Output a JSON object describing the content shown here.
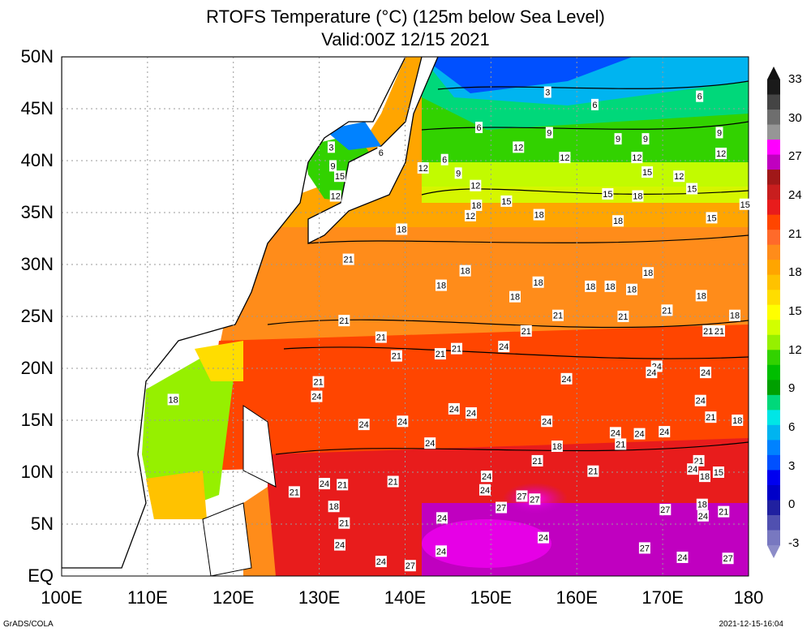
{
  "title": {
    "line1": "RTOFS Temperature (°C) (125m below Sea Level)",
    "line2": "Valid:00Z 12/15 2021"
  },
  "axes": {
    "lat_labels": [
      "50N",
      "45N",
      "40N",
      "35N",
      "30N",
      "25N",
      "20N",
      "15N",
      "10N",
      "5N",
      "EQ"
    ],
    "lon_labels": [
      "100E",
      "110E",
      "120E",
      "130E",
      "140E",
      "150E",
      "160E",
      "170E",
      "180"
    ],
    "lat_range": [
      0,
      50
    ],
    "lon_range": [
      100,
      180
    ],
    "grid": true
  },
  "colorbar": {
    "labels": [
      "33",
      "30",
      "27",
      "24",
      "21",
      "18",
      "15",
      "12",
      "9",
      "6",
      "3",
      "0",
      "-3"
    ],
    "colors": [
      "#1a1a1a",
      "#444444",
      "#6e6e6e",
      "#969696",
      "#ff00ff",
      "#c000c0",
      "#a01818",
      "#c81e1e",
      "#e81c1c",
      "#ff4500",
      "#ff6a2a",
      "#ff8c1a",
      "#ffa500",
      "#ffc200",
      "#ffdd00",
      "#ffff00",
      "#d2ff00",
      "#96f000",
      "#32d200",
      "#00be00",
      "#00a000",
      "#00d87a",
      "#00e6e6",
      "#00b4f0",
      "#0082ff",
      "#0050ff",
      "#0000f0",
      "#0000c8",
      "#2020a0",
      "#5050b0",
      "#7878c0"
    ]
  },
  "contour_labels": [
    {
      "v": "3",
      "lon": 156.6,
      "lat": 46.6
    },
    {
      "v": "6",
      "lon": 162.1,
      "lat": 45.4
    },
    {
      "v": "6",
      "lon": 174.3,
      "lat": 46.2
    },
    {
      "v": "6",
      "lon": 148.6,
      "lat": 43.2
    },
    {
      "v": "9",
      "lon": 156.8,
      "lat": 42.7
    },
    {
      "v": "9",
      "lon": 164.8,
      "lat": 42.1
    },
    {
      "v": "9",
      "lon": 168.0,
      "lat": 42.1
    },
    {
      "v": "9",
      "lon": 176.6,
      "lat": 42.7
    },
    {
      "v": "12",
      "lon": 153.2,
      "lat": 41.3
    },
    {
      "v": "12",
      "lon": 158.6,
      "lat": 40.3
    },
    {
      "v": "12",
      "lon": 167.0,
      "lat": 40.3
    },
    {
      "v": "12",
      "lon": 176.8,
      "lat": 40.7
    },
    {
      "v": "3",
      "lon": 131.4,
      "lat": 41.3
    },
    {
      "v": "6",
      "lon": 137.2,
      "lat": 40.8
    },
    {
      "v": "9",
      "lon": 131.6,
      "lat": 39.5
    },
    {
      "v": "15",
      "lon": 132.4,
      "lat": 38.5
    },
    {
      "v": "12",
      "lon": 131.9,
      "lat": 36.6
    },
    {
      "v": "12",
      "lon": 142.1,
      "lat": 39.3
    },
    {
      "v": "6",
      "lon": 144.6,
      "lat": 40.1
    },
    {
      "v": "9",
      "lon": 146.2,
      "lat": 38.8
    },
    {
      "v": "12",
      "lon": 148.2,
      "lat": 37.6
    },
    {
      "v": "15",
      "lon": 168.2,
      "lat": 38.9
    },
    {
      "v": "12",
      "lon": 171.9,
      "lat": 38.5
    },
    {
      "v": "15",
      "lon": 173.4,
      "lat": 37.3
    },
    {
      "v": "15",
      "lon": 163.6,
      "lat": 36.8
    },
    {
      "v": "18",
      "lon": 167.1,
      "lat": 36.6
    },
    {
      "v": "15",
      "lon": 151.8,
      "lat": 36.1
    },
    {
      "v": "18",
      "lon": 148.3,
      "lat": 35.7
    },
    {
      "v": "12",
      "lon": 147.6,
      "lat": 34.7
    },
    {
      "v": "18",
      "lon": 155.6,
      "lat": 34.8
    },
    {
      "v": "18",
      "lon": 164.8,
      "lat": 34.2
    },
    {
      "v": "15",
      "lon": 175.7,
      "lat": 34.5
    },
    {
      "v": "15",
      "lon": 179.6,
      "lat": 35.8
    },
    {
      "v": "18",
      "lon": 139.6,
      "lat": 33.4
    },
    {
      "v": "21",
      "lon": 133.4,
      "lat": 30.5
    },
    {
      "v": "18",
      "lon": 147.0,
      "lat": 29.4
    },
    {
      "v": "18",
      "lon": 144.2,
      "lat": 28.0
    },
    {
      "v": "18",
      "lon": 155.5,
      "lat": 28.3
    },
    {
      "v": "18",
      "lon": 168.3,
      "lat": 29.2
    },
    {
      "v": "18",
      "lon": 161.6,
      "lat": 27.9
    },
    {
      "v": "18",
      "lon": 163.9,
      "lat": 27.9
    },
    {
      "v": "18",
      "lon": 166.4,
      "lat": 27.6
    },
    {
      "v": "18",
      "lon": 152.8,
      "lat": 26.9
    },
    {
      "v": "18",
      "lon": 174.5,
      "lat": 27.0
    },
    {
      "v": "21",
      "lon": 157.8,
      "lat": 25.1
    },
    {
      "v": "21",
      "lon": 165.4,
      "lat": 25.0
    },
    {
      "v": "21",
      "lon": 170.5,
      "lat": 25.6
    },
    {
      "v": "18",
      "lon": 178.4,
      "lat": 25.1
    },
    {
      "v": "21",
      "lon": 132.9,
      "lat": 24.6
    },
    {
      "v": "21",
      "lon": 154.1,
      "lat": 23.6
    },
    {
      "v": "21",
      "lon": 175.3,
      "lat": 23.6
    },
    {
      "v": "21",
      "lon": 176.6,
      "lat": 23.6
    },
    {
      "v": "21",
      "lon": 137.2,
      "lat": 23.0
    },
    {
      "v": "24",
      "lon": 151.5,
      "lat": 22.1
    },
    {
      "v": "21",
      "lon": 146.0,
      "lat": 21.9
    },
    {
      "v": "21",
      "lon": 144.1,
      "lat": 21.4
    },
    {
      "v": "21",
      "lon": 139.0,
      "lat": 21.2
    },
    {
      "v": "24",
      "lon": 169.3,
      "lat": 20.2
    },
    {
      "v": "24",
      "lon": 168.7,
      "lat": 19.6
    },
    {
      "v": "24",
      "lon": 175.0,
      "lat": 19.6
    },
    {
      "v": "24",
      "lon": 158.8,
      "lat": 19.0
    },
    {
      "v": "21",
      "lon": 129.9,
      "lat": 18.7
    },
    {
      "v": "24",
      "lon": 129.7,
      "lat": 17.3
    },
    {
      "v": "18",
      "lon": 113.0,
      "lat": 17.0
    },
    {
      "v": "24",
      "lon": 174.4,
      "lat": 16.9
    },
    {
      "v": "24",
      "lon": 145.7,
      "lat": 16.1
    },
    {
      "v": "24",
      "lon": 147.7,
      "lat": 15.7
    },
    {
      "v": "24",
      "lon": 135.2,
      "lat": 14.6
    },
    {
      "v": "24",
      "lon": 139.7,
      "lat": 14.9
    },
    {
      "v": "24",
      "lon": 156.5,
      "lat": 14.9
    },
    {
      "v": "21",
      "lon": 175.6,
      "lat": 15.3
    },
    {
      "v": "18",
      "lon": 178.7,
      "lat": 15.0
    },
    {
      "v": "24",
      "lon": 164.5,
      "lat": 13.8
    },
    {
      "v": "24",
      "lon": 167.3,
      "lat": 13.7
    },
    {
      "v": "24",
      "lon": 170.2,
      "lat": 13.9
    },
    {
      "v": "24",
      "lon": 142.9,
      "lat": 12.8
    },
    {
      "v": "21",
      "lon": 165.1,
      "lat": 12.7
    },
    {
      "v": "18",
      "lon": 157.7,
      "lat": 12.5
    },
    {
      "v": "21",
      "lon": 174.2,
      "lat": 11.1
    },
    {
      "v": "21",
      "lon": 155.4,
      "lat": 11.1
    },
    {
      "v": "24",
      "lon": 173.5,
      "lat": 10.3
    },
    {
      "v": "18",
      "lon": 174.9,
      "lat": 9.6
    },
    {
      "v": "15",
      "lon": 176.5,
      "lat": 10.0
    },
    {
      "v": "21",
      "lon": 161.9,
      "lat": 10.1
    },
    {
      "v": "24",
      "lon": 149.5,
      "lat": 9.6
    },
    {
      "v": "21",
      "lon": 127.1,
      "lat": 8.1
    },
    {
      "v": "24",
      "lon": 130.6,
      "lat": 8.9
    },
    {
      "v": "21",
      "lon": 132.7,
      "lat": 8.8
    },
    {
      "v": "21",
      "lon": 138.6,
      "lat": 9.1
    },
    {
      "v": "24",
      "lon": 149.3,
      "lat": 8.3
    },
    {
      "v": "27",
      "lon": 153.6,
      "lat": 7.7
    },
    {
      "v": "27",
      "lon": 155.1,
      "lat": 7.4
    },
    {
      "v": "27",
      "lon": 151.2,
      "lat": 6.6
    },
    {
      "v": "27",
      "lon": 170.3,
      "lat": 6.4
    },
    {
      "v": "18",
      "lon": 131.7,
      "lat": 6.7
    },
    {
      "v": "18",
      "lon": 174.6,
      "lat": 6.9
    },
    {
      "v": "24",
      "lon": 174.7,
      "lat": 5.8
    },
    {
      "v": "21",
      "lon": 177.1,
      "lat": 6.2
    },
    {
      "v": "21",
      "lon": 132.9,
      "lat": 5.1
    },
    {
      "v": "24",
      "lon": 144.3,
      "lat": 5.6
    },
    {
      "v": "24",
      "lon": 132.4,
      "lat": 3.0
    },
    {
      "v": "24",
      "lon": 156.1,
      "lat": 3.7
    },
    {
      "v": "27",
      "lon": 167.9,
      "lat": 2.7
    },
    {
      "v": "24",
      "lon": 144.2,
      "lat": 2.4
    },
    {
      "v": "24",
      "lon": 137.2,
      "lat": 1.4
    },
    {
      "v": "27",
      "lon": 140.6,
      "lat": 1.0
    },
    {
      "v": "24",
      "lon": 172.3,
      "lat": 1.8
    },
    {
      "v": "27",
      "lon": 177.6,
      "lat": 1.7
    }
  ],
  "footer": {
    "left": "GrADS/COLA",
    "right": "2021-12-15-16:04"
  }
}
